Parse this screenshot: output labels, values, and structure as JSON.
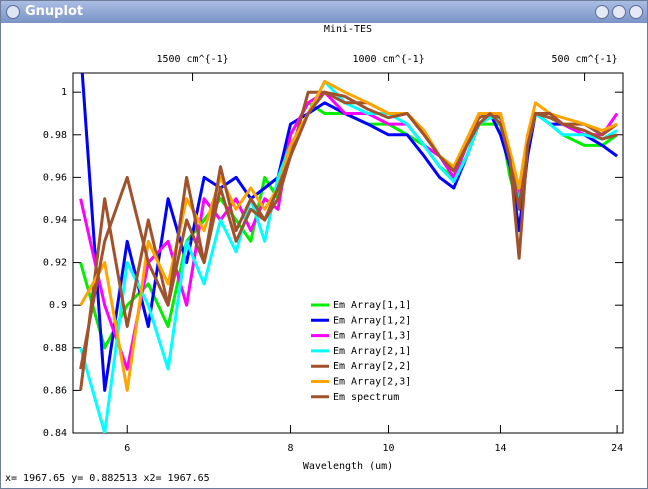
{
  "window": {
    "title": "Gnuplot",
    "status": "x= 1967.65 y= 0.882513 x2= 1967.65"
  },
  "chart_data": {
    "type": "line",
    "title": "Mini-TES",
    "x_label": "Wavelength (um)",
    "x_scale": "reciprocal",
    "xlim": [
      5.54,
      24.9
    ],
    "xticks": [
      6,
      8,
      10,
      14,
      24
    ],
    "x2lim": [
      1805,
      402
    ],
    "x2ticks": [
      {
        "value": 1500,
        "label": "1500 cm^{-1}"
      },
      {
        "value": 1000,
        "label": "1000 cm^{-1}"
      },
      {
        "value": 500,
        "label": "500 cm^{-1}"
      }
    ],
    "ylim": [
      0.84,
      1.009
    ],
    "yticks": [
      0.84,
      0.86,
      0.88,
      0.9,
      0.92,
      0.94,
      0.96,
      0.98,
      1
    ],
    "legend": "center",
    "x": [
      5.6,
      5.8,
      6.0,
      6.2,
      6.4,
      6.6,
      6.8,
      7.0,
      7.2,
      7.4,
      7.6,
      7.8,
      8.0,
      8.3,
      8.6,
      9.0,
      9.5,
      10,
      10.5,
      11,
      11.5,
      12,
      12.5,
      13,
      13.5,
      14,
      14.5,
      15,
      15.5,
      16,
      17,
      18,
      20,
      22,
      24
    ],
    "series": [
      {
        "name": "Em Array[1,1]",
        "color": "#00ee00",
        "values": [
          0.92,
          0.88,
          0.9,
          0.91,
          0.89,
          0.93,
          0.94,
          0.95,
          0.94,
          0.93,
          0.96,
          0.95,
          0.98,
          0.995,
          0.99,
          0.99,
          0.985,
          0.985,
          0.98,
          0.975,
          0.965,
          0.96,
          0.97,
          0.985,
          0.985,
          0.985,
          0.96,
          0.945,
          0.975,
          0.99,
          0.985,
          0.98,
          0.975,
          0.975,
          0.98
        ]
      },
      {
        "name": "Em Array[1,2]",
        "color": "#0000ff",
        "values": [
          1.02,
          0.86,
          0.93,
          0.89,
          0.95,
          0.92,
          0.96,
          0.955,
          0.96,
          0.95,
          0.955,
          0.96,
          0.985,
          0.99,
          0.995,
          0.99,
          0.985,
          0.98,
          0.98,
          0.97,
          0.96,
          0.955,
          0.97,
          0.985,
          0.99,
          0.98,
          0.965,
          0.935,
          0.97,
          0.99,
          0.985,
          0.985,
          0.98,
          0.975,
          0.97
        ]
      },
      {
        "name": "Em Array[1,3]",
        "color": "#ff00ff",
        "values": [
          0.95,
          0.9,
          0.87,
          0.92,
          0.93,
          0.9,
          0.95,
          0.94,
          0.95,
          0.935,
          0.95,
          0.945,
          0.98,
          0.995,
          1.0,
          0.99,
          0.99,
          0.985,
          0.985,
          0.975,
          0.97,
          0.96,
          0.975,
          0.99,
          0.99,
          0.99,
          0.97,
          0.95,
          0.975,
          0.99,
          0.99,
          0.985,
          0.98,
          0.98,
          0.99
        ]
      },
      {
        "name": "Em Array[2,1]",
        "color": "#00ffff",
        "values": [
          0.88,
          0.84,
          0.92,
          0.9,
          0.87,
          0.93,
          0.91,
          0.94,
          0.925,
          0.95,
          0.93,
          0.96,
          0.975,
          0.99,
          1.005,
          0.995,
          0.99,
          0.99,
          0.985,
          0.975,
          0.965,
          0.958,
          0.97,
          0.985,
          0.988,
          0.988,
          0.968,
          0.948,
          0.975,
          0.99,
          0.985,
          0.98,
          0.98,
          0.978,
          0.982
        ]
      },
      {
        "name": "Em Array[2,2]",
        "color": "#a0522d",
        "values": [
          0.86,
          0.95,
          0.89,
          0.94,
          0.9,
          0.94,
          0.92,
          0.955,
          0.93,
          0.945,
          0.94,
          0.95,
          0.97,
          1.0,
          1.0,
          0.995,
          0.995,
          0.99,
          0.99,
          0.98,
          0.97,
          0.963,
          0.975,
          0.988,
          0.99,
          0.988,
          0.97,
          0.945,
          0.98,
          0.99,
          0.988,
          0.985,
          0.985,
          0.98,
          0.985
        ]
      },
      {
        "name": "Em Array[2,3]",
        "color": "#ffa500",
        "values": [
          0.9,
          0.92,
          0.86,
          0.93,
          0.91,
          0.95,
          0.935,
          0.96,
          0.945,
          0.955,
          0.945,
          0.955,
          0.975,
          0.99,
          1.005,
          1.0,
          0.995,
          0.99,
          0.99,
          0.982,
          0.97,
          0.965,
          0.978,
          0.99,
          0.99,
          0.99,
          0.972,
          0.955,
          0.98,
          0.995,
          0.99,
          0.988,
          0.985,
          0.982,
          0.985
        ]
      },
      {
        "name": "Em spectrum",
        "color": "#a0522d",
        "values": [
          0.87,
          0.93,
          0.96,
          0.92,
          0.9,
          0.96,
          0.92,
          0.965,
          0.935,
          0.95,
          0.94,
          0.955,
          0.97,
          0.99,
          1.0,
          0.998,
          0.992,
          0.988,
          0.99,
          0.98,
          0.97,
          0.963,
          0.975,
          0.985,
          0.99,
          0.985,
          0.968,
          0.922,
          0.975,
          0.99,
          0.99,
          0.985,
          0.982,
          0.978,
          0.98
        ]
      }
    ]
  }
}
